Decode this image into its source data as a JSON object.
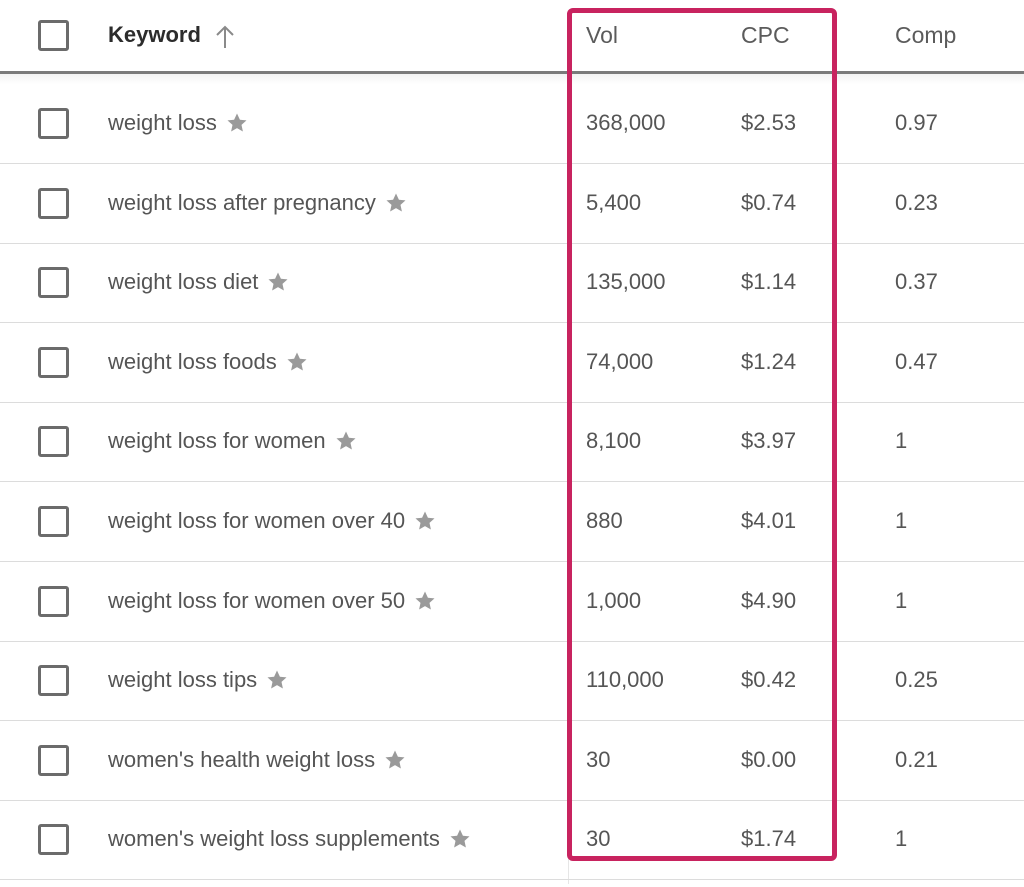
{
  "header": {
    "keyword": "Keyword",
    "vol": "Vol",
    "cpc": "CPC",
    "comp": "Comp"
  },
  "colors": {
    "highlight": "#c8235f",
    "star": "#9a9a9a",
    "checkbox_border": "#6b6b6b"
  },
  "icons": {
    "sort": "arrow-up-icon",
    "favorite": "star-icon"
  },
  "rows": [
    {
      "keyword": "weight loss",
      "vol": "368,000",
      "cpc": "$2.53",
      "comp": "0.97"
    },
    {
      "keyword": "weight loss after pregnancy",
      "vol": "5,400",
      "cpc": "$0.74",
      "comp": "0.23"
    },
    {
      "keyword": "weight loss diet",
      "vol": "135,000",
      "cpc": "$1.14",
      "comp": "0.37"
    },
    {
      "keyword": "weight loss foods",
      "vol": "74,000",
      "cpc": "$1.24",
      "comp": "0.47"
    },
    {
      "keyword": "weight loss for women",
      "vol": "8,100",
      "cpc": "$3.97",
      "comp": "1"
    },
    {
      "keyword": "weight loss for women over 40",
      "vol": "880",
      "cpc": "$4.01",
      "comp": "1"
    },
    {
      "keyword": "weight loss for women over 50",
      "vol": "1,000",
      "cpc": "$4.90",
      "comp": "1"
    },
    {
      "keyword": "weight loss tips",
      "vol": "110,000",
      "cpc": "$0.42",
      "comp": "0.25"
    },
    {
      "keyword": "women's health weight loss",
      "vol": "30",
      "cpc": "$0.00",
      "comp": "0.21"
    },
    {
      "keyword": "women's weight loss supplements",
      "vol": "30",
      "cpc": "$1.74",
      "comp": "1"
    }
  ]
}
